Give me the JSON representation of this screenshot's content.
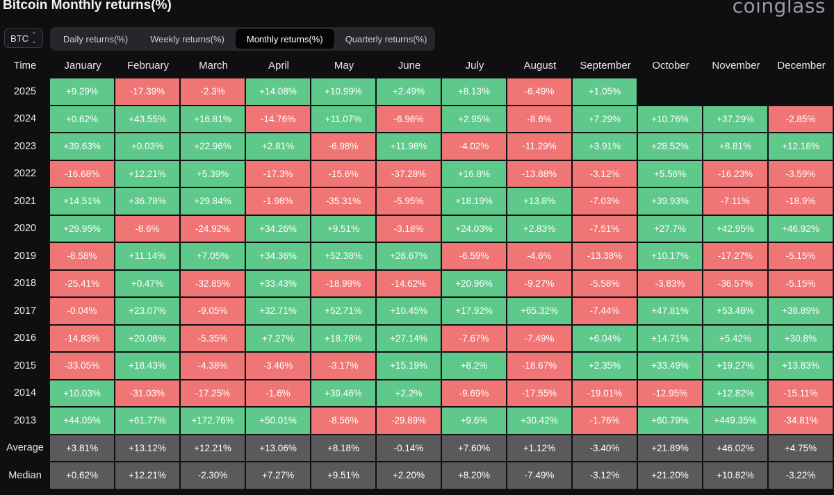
{
  "title": "Bitcoin Monthly returns(%)",
  "brand": "coinglass",
  "selector": {
    "value": "BTC",
    "icon": "chevron-up-down-icon"
  },
  "tabs": [
    {
      "label": "Daily returns(%)",
      "active": false
    },
    {
      "label": "Weekly returns(%)",
      "active": false
    },
    {
      "label": "Monthly returns(%)",
      "active": true
    },
    {
      "label": "Quarterly returns(%)",
      "active": false
    }
  ],
  "columns": [
    "Time",
    "January",
    "February",
    "March",
    "April",
    "May",
    "June",
    "July",
    "August",
    "September",
    "October",
    "November",
    "December"
  ],
  "colors": {
    "positive": "#5fc98b",
    "negative": "#f07675",
    "stat": "#5a5a5d",
    "background": "#0f0f12"
  },
  "rows": [
    {
      "label": "2025",
      "values": [
        "+9.29%",
        "-17.39%",
        "-2.3%",
        "+14.08%",
        "+10.99%",
        "+2.49%",
        "+8.13%",
        "-6.49%",
        "+1.05%",
        "",
        "",
        ""
      ]
    },
    {
      "label": "2024",
      "values": [
        "+0.62%",
        "+43.55%",
        "+16.81%",
        "-14.76%",
        "+11.07%",
        "-6.96%",
        "+2.95%",
        "-8.6%",
        "+7.29%",
        "+10.76%",
        "+37.29%",
        "-2.85%"
      ]
    },
    {
      "label": "2023",
      "values": [
        "+39.63%",
        "+0.03%",
        "+22.96%",
        "+2.81%",
        "-6.98%",
        "+11.98%",
        "-4.02%",
        "-11.29%",
        "+3.91%",
        "+28.52%",
        "+8.81%",
        "+12.18%"
      ]
    },
    {
      "label": "2022",
      "values": [
        "-16.68%",
        "+12.21%",
        "+5.39%",
        "-17.3%",
        "-15.6%",
        "-37.28%",
        "+16.8%",
        "-13.88%",
        "-3.12%",
        "+5.56%",
        "-16.23%",
        "-3.59%"
      ]
    },
    {
      "label": "2021",
      "values": [
        "+14.51%",
        "+36.78%",
        "+29.84%",
        "-1.98%",
        "-35.31%",
        "-5.95%",
        "+18.19%",
        "+13.8%",
        "-7.03%",
        "+39.93%",
        "-7.11%",
        "-18.9%"
      ]
    },
    {
      "label": "2020",
      "values": [
        "+29.95%",
        "-8.6%",
        "-24.92%",
        "+34.26%",
        "+9.51%",
        "-3.18%",
        "+24.03%",
        "+2.83%",
        "-7.51%",
        "+27.7%",
        "+42.95%",
        "+46.92%"
      ]
    },
    {
      "label": "2019",
      "values": [
        "-8.58%",
        "+11.14%",
        "+7.05%",
        "+34.36%",
        "+52.38%",
        "+26.67%",
        "-6.59%",
        "-4.6%",
        "-13.38%",
        "+10.17%",
        "-17.27%",
        "-5.15%"
      ]
    },
    {
      "label": "2018",
      "values": [
        "-25.41%",
        "+0.47%",
        "-32.85%",
        "+33.43%",
        "-18.99%",
        "-14.62%",
        "+20.96%",
        "-9.27%",
        "-5.58%",
        "-3.83%",
        "-36.57%",
        "-5.15%"
      ]
    },
    {
      "label": "2017",
      "values": [
        "-0.04%",
        "+23.07%",
        "-9.05%",
        "+32.71%",
        "+52.71%",
        "+10.45%",
        "+17.92%",
        "+65.32%",
        "-7.44%",
        "+47.81%",
        "+53.48%",
        "+38.89%"
      ]
    },
    {
      "label": "2016",
      "values": [
        "-14.83%",
        "+20.08%",
        "-5.35%",
        "+7.27%",
        "+18.78%",
        "+27.14%",
        "-7.67%",
        "-7.49%",
        "+6.04%",
        "+14.71%",
        "+5.42%",
        "+30.8%"
      ]
    },
    {
      "label": "2015",
      "values": [
        "-33.05%",
        "+18.43%",
        "-4.38%",
        "-3.46%",
        "-3.17%",
        "+15.19%",
        "+8.2%",
        "-18.67%",
        "+2.35%",
        "+33.49%",
        "+19.27%",
        "+13.83%"
      ]
    },
    {
      "label": "2014",
      "values": [
        "+10.03%",
        "-31.03%",
        "-17.25%",
        "-1.6%",
        "+39.46%",
        "+2.2%",
        "-9.69%",
        "-17.55%",
        "-19.01%",
        "-12.95%",
        "+12.82%",
        "-15.11%"
      ]
    },
    {
      "label": "2013",
      "values": [
        "+44.05%",
        "+61.77%",
        "+172.76%",
        "+50.01%",
        "-8.56%",
        "-29.89%",
        "+9.6%",
        "+30.42%",
        "-1.76%",
        "+60.79%",
        "+449.35%",
        "-34.81%"
      ]
    },
    {
      "label": "Average",
      "stat": true,
      "values": [
        "+3.81%",
        "+13.12%",
        "+12.21%",
        "+13.06%",
        "+8.18%",
        "-0.14%",
        "+7.60%",
        "+1.12%",
        "-3.40%",
        "+21.89%",
        "+46.02%",
        "+4.75%"
      ]
    },
    {
      "label": "Median",
      "stat": true,
      "values": [
        "+0.62%",
        "+12.21%",
        "-2.30%",
        "+7.27%",
        "+9.51%",
        "+2.20%",
        "+8.20%",
        "-7.49%",
        "-3.12%",
        "+21.20%",
        "+10.82%",
        "-3.22%"
      ]
    }
  ]
}
